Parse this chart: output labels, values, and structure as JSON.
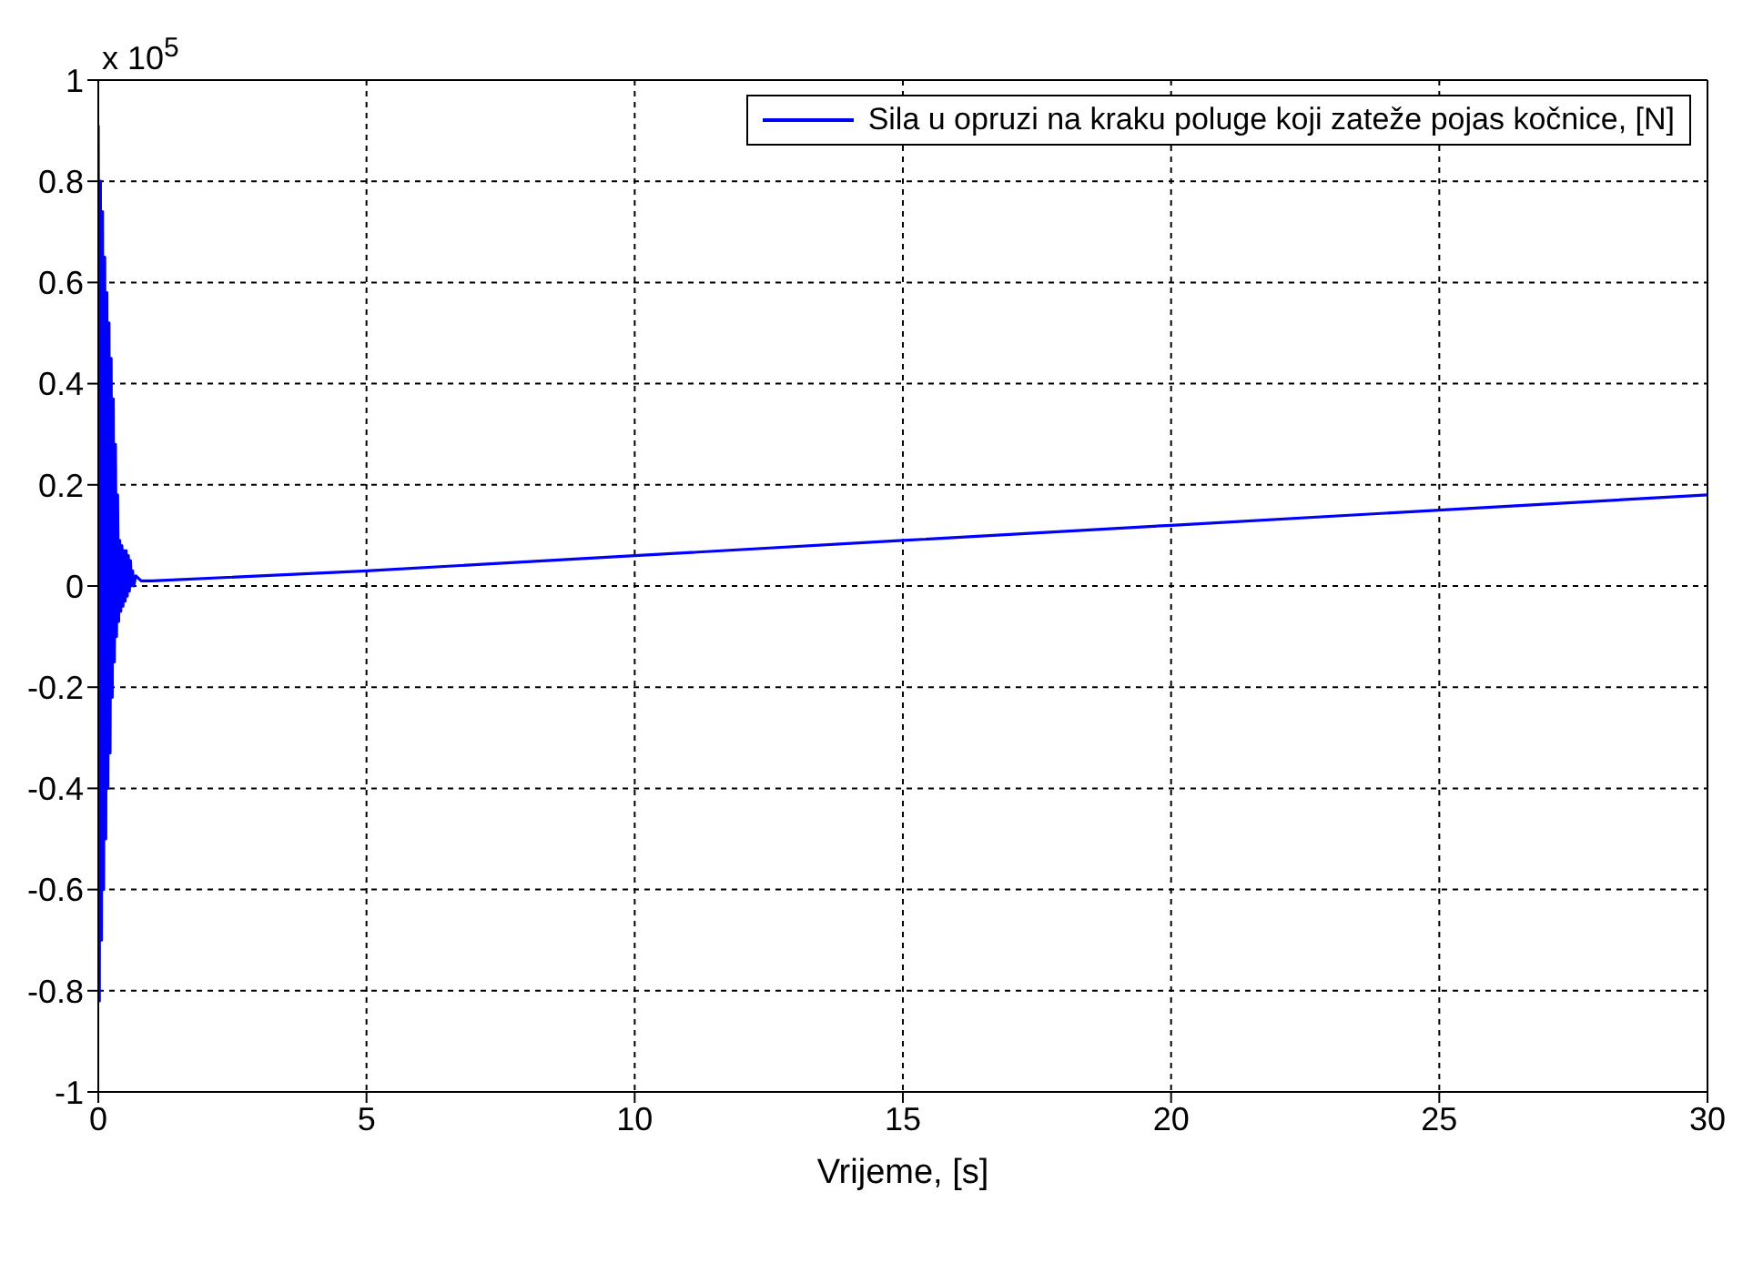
{
  "chart_data": {
    "type": "line",
    "xlabel": "Vrijeme, [s]",
    "annotations": [
      "x 10$^{5}$"
    ],
    "xlim": [
      0,
      30
    ],
    "xticks": [
      0,
      5,
      10,
      15,
      20,
      25,
      30
    ],
    "ylim": [
      -1,
      1
    ],
    "yticks": [
      -1,
      -0.8,
      -0.6,
      -0.4,
      -0.2,
      0,
      0.2,
      0.4,
      0.6,
      0.8,
      1
    ],
    "grid": true,
    "legend": "top right",
    "marker": "none",
    "line_style": "solid",
    "series": [
      {
        "name": "Sila u opruzi na kraku poluge koji zateže pojas kočnice, [N]",
        "color": "#0000ff",
        "x": [
          0,
          0.02,
          0.04,
          0.06,
          0.08,
          0.1,
          0.12,
          0.14,
          0.16,
          0.18,
          0.2,
          0.22,
          0.24,
          0.26,
          0.28,
          0.3,
          0.32,
          0.34,
          0.36,
          0.38,
          0.4,
          0.42,
          0.44,
          0.46,
          0.48,
          0.5,
          0.52,
          0.54,
          0.56,
          0.58,
          0.6,
          0.62,
          0.64,
          0.66,
          0.7,
          0.8,
          1,
          5,
          10,
          15,
          20,
          25,
          30
        ],
        "values": [
          0.91,
          -0.82,
          0.8,
          -0.7,
          0.74,
          -0.6,
          0.65,
          -0.5,
          0.58,
          -0.4,
          0.52,
          -0.33,
          0.45,
          -0.22,
          0.37,
          -0.15,
          0.28,
          -0.1,
          0.18,
          -0.07,
          0.09,
          -0.05,
          0.08,
          -0.04,
          0.07,
          -0.03,
          0.07,
          -0.02,
          0.06,
          -0.01,
          0.05,
          0,
          0.03,
          0,
          0.02,
          0.01,
          0.01,
          0.03,
          0.06,
          0.09,
          0.12,
          0.15,
          0.18
        ]
      }
    ]
  }
}
